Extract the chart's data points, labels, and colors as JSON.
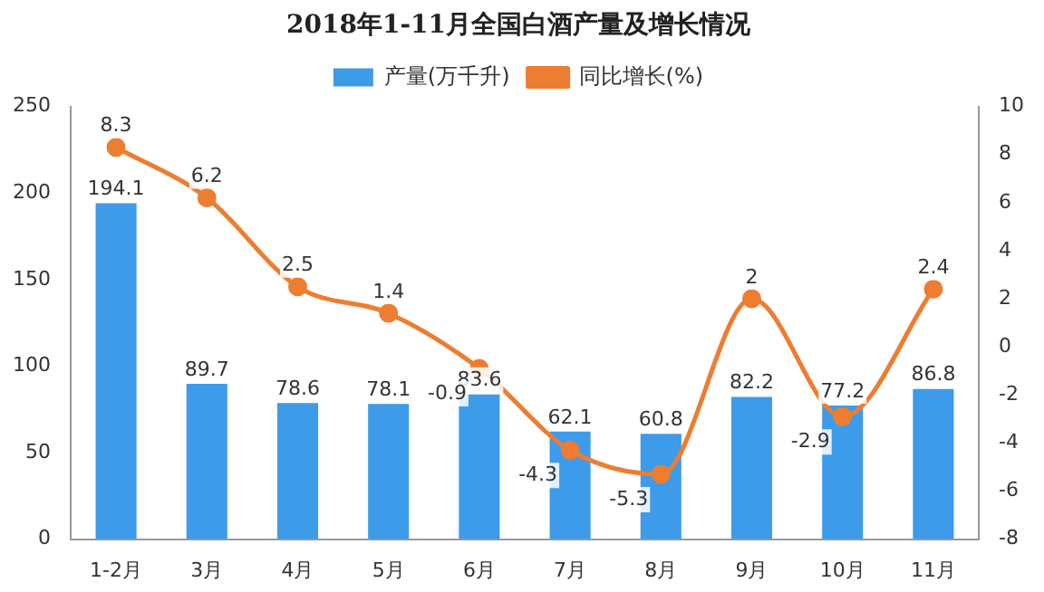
{
  "chart_data": {
    "type": "bar",
    "title": "2018年1-11月全国白酒产量及增长情况",
    "categories": [
      "1-2月",
      "3月",
      "4月",
      "5月",
      "6月",
      "7月",
      "8月",
      "9月",
      "10月",
      "11月"
    ],
    "series": [
      {
        "name": "产量(万千升)",
        "color": "#3d9be9",
        "values": [
          194.1,
          89.7,
          78.6,
          78.1,
          83.6,
          62.1,
          60.8,
          82.2,
          77.2,
          86.8
        ]
      },
      {
        "name": "同比增长(%)",
        "type": "line",
        "color": "#ed7d31",
        "axis": "y2",
        "values": [
          8.3,
          6.2,
          2.5,
          1.4,
          -0.9,
          -4.3,
          -5.3,
          2,
          -2.9,
          2.4
        ]
      }
    ],
    "ylim": [
      0,
      250
    ],
    "yticks": [
      0,
      50,
      100,
      150,
      200,
      250
    ],
    "y2lim": [
      -8,
      10
    ],
    "y2ticks": [
      -8,
      -6,
      -4,
      -2,
      0,
      2,
      4,
      6,
      8,
      10
    ],
    "legend": "top",
    "marker": "circle",
    "data_labels": true
  }
}
